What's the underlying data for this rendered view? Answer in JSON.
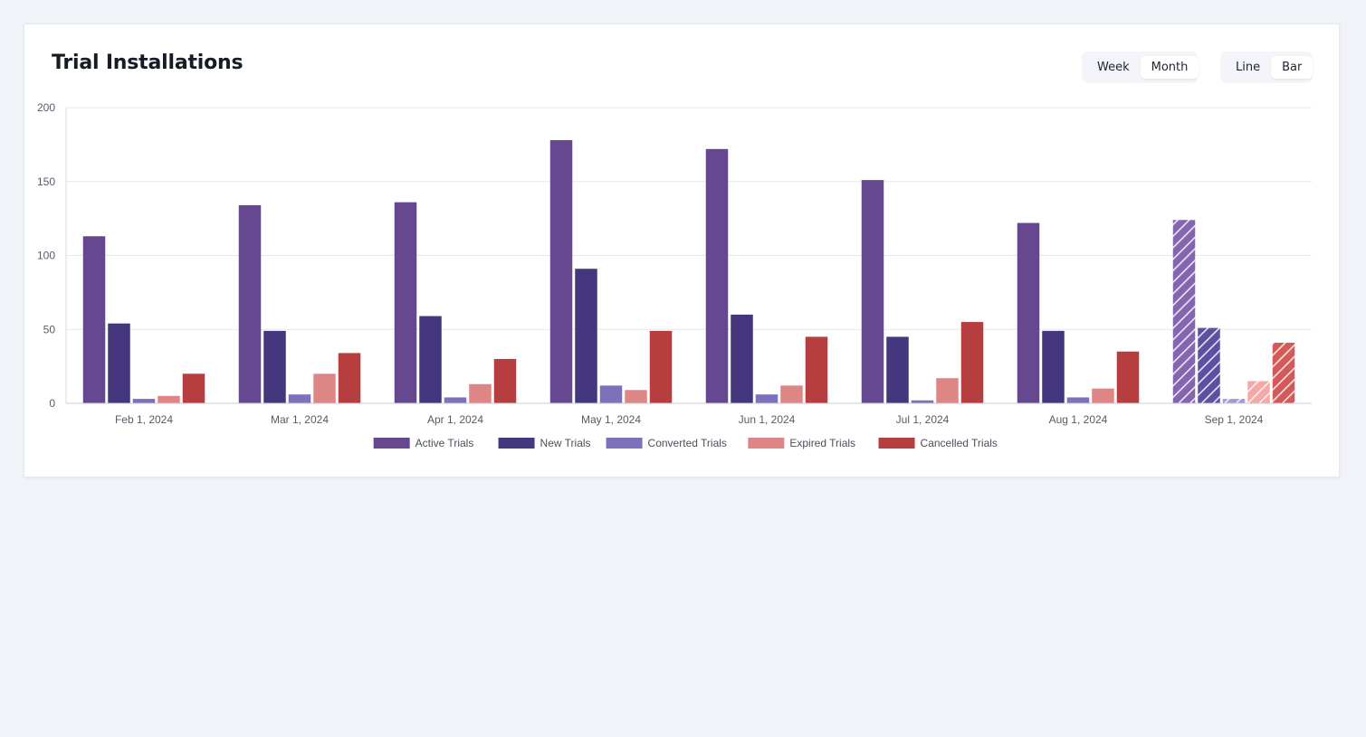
{
  "card": {
    "title": "Trial Installations",
    "period_toggle": {
      "options": [
        "Week",
        "Month"
      ],
      "selected": "Month"
    },
    "type_toggle": {
      "options": [
        "Line",
        "Bar"
      ],
      "selected": "Bar"
    }
  },
  "chart_data": {
    "type": "bar",
    "title": "Trial Installations",
    "xlabel": "",
    "ylabel": "",
    "ylim": [
      0,
      200
    ],
    "yticks": [
      0,
      50,
      100,
      150,
      200
    ],
    "grid": true,
    "legend_position": "bottom-center",
    "categories": [
      "Feb 1, 2024",
      "Mar 1, 2024",
      "Apr 1, 2024",
      "May 1, 2024",
      "Jun 1, 2024",
      "Jul 1, 2024",
      "Aug 1, 2024",
      "Sep 1, 2024"
    ],
    "projected_categories": [
      "Sep 1, 2024"
    ],
    "series": [
      {
        "name": "Active Trials",
        "color": "#65488f",
        "values": [
          113,
          134,
          136,
          178,
          172,
          151,
          122,
          124
        ]
      },
      {
        "name": "New Trials",
        "color": "#44377d",
        "values": [
          54,
          49,
          59,
          91,
          60,
          45,
          49,
          51
        ]
      },
      {
        "name": "Converted Trials",
        "color": "#7e70bb",
        "values": [
          3,
          6,
          4,
          12,
          6,
          2,
          4,
          3
        ]
      },
      {
        "name": "Expired Trials",
        "color": "#de8685",
        "values": [
          5,
          20,
          13,
          9,
          12,
          17,
          10,
          15
        ]
      },
      {
        "name": "Cancelled Trials",
        "color": "#b73e3f",
        "values": [
          20,
          34,
          30,
          49,
          45,
          55,
          35,
          41
        ]
      }
    ],
    "projected_colors": [
      "#8466b0",
      "#5c50a3",
      "#a59ad6",
      "#f5a8a6",
      "#d45a5a"
    ]
  }
}
